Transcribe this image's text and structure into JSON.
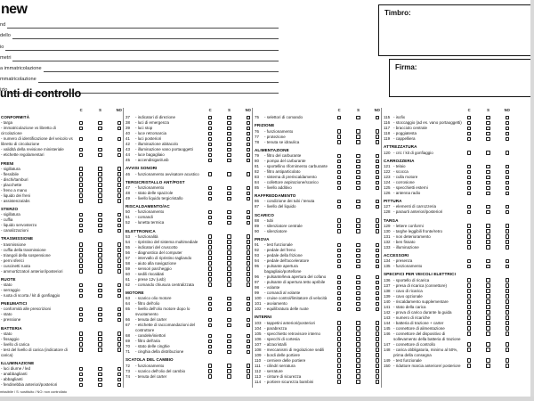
{
  "logo": "new",
  "form": {
    "fields": [
      {
        "label": "nd"
      },
      {
        "label": "dello"
      },
      {
        "label": "io"
      },
      {
        "label": "metri"
      },
      {
        "label": "a immatricolazione"
      },
      {
        "label": "mmatricolazione"
      },
      {
        "label": "izio"
      }
    ]
  },
  "stamp_box": {
    "label": "Timbro:"
  },
  "signature_box": {
    "label": "Firma:"
  },
  "checklist": {
    "heading": "unti di controllo",
    "mark_headers": [
      "C",
      "S",
      "NO"
    ],
    "legend": "missibile / S: sostituito / NO: non controllato",
    "columns": [
      {
        "sections": [
          {
            "title": "CONFORMITÀ",
            "items": [
              {
                "label": "- targa"
              },
              {
                "label": "- immatricolazione vs libretto di circolazione"
              },
              {
                "label": "- numero di identificazione del veicolo vs libretto di circolazione"
              },
              {
                "label": "- validità della revisione ministeriale"
              },
              {
                "label": "- etichette regolamentari"
              }
            ]
          },
          {
            "title": "FRENI",
            "items": [
              {
                "label": "- sigillatura"
              },
              {
                "label": "- flessibile"
              },
              {
                "label": "- dischi/tamburi"
              },
              {
                "label": "- placchette"
              },
              {
                "label": "- freno a mano"
              },
              {
                "label": "- liquido dei freni"
              },
              {
                "label": "- assistenza/abs"
              }
            ]
          },
          {
            "title": "STERZO",
            "items": [
              {
                "label": "- sigillatura"
              },
              {
                "label": "- cuffia"
              },
              {
                "label": "- liquido servosterzo"
              },
              {
                "label": "- canalizzazioni"
              }
            ]
          },
          {
            "title": "TRASMISSIONE",
            "items": [
              {
                "label": "- trasmissione"
              },
              {
                "label": "- cuffia della trasmissione"
              },
              {
                "label": "- triangoli della sospensione"
              },
              {
                "label": "- perni sferici"
              },
              {
                "label": "- cuscinetti ruota"
              },
              {
                "label": "- ammortizzatori anteriori/posteriori"
              }
            ]
          },
          {
            "title": "RUOTE",
            "items": [
              {
                "label": "- stato"
              },
              {
                "label": "- serraggio"
              },
              {
                "label": "- ruota di scorta / kit di gonfiaggio"
              }
            ]
          },
          {
            "title": "PNEUMATICI",
            "items": [
              {
                "label": "- conformità alle prescrizioni"
              },
              {
                "label": "- stato"
              },
              {
                "label": "- pressione"
              }
            ]
          },
          {
            "title": "BATTERIA",
            "items": [
              {
                "label": "- stato"
              },
              {
                "label": "- fissaggio"
              },
              {
                "label": "- livello di carica"
              },
              {
                "label": "- test del livello di carica (indicatore di carica)"
              }
            ]
          },
          {
            "title": "ILLUMINAZIONE",
            "items": [
              {
                "label": "- luci diurne / led"
              },
              {
                "label": "- anabbaglianti"
              },
              {
                "label": "- abbaglianti"
              },
              {
                "label": "- fendinebbia anteriori/posteriori"
              }
            ]
          }
        ]
      },
      {
        "sections": [
          {
            "items": [
              {
                "n": 37,
                "label": "- indicatori di direzione"
              },
              {
                "n": 38,
                "label": "- luci di emergenza"
              },
              {
                "n": 39,
                "label": "- luci stop"
              },
              {
                "n": 40,
                "label": "- luce retromarcia"
              },
              {
                "n": 41,
                "label": "- luci posteriori"
              },
              {
                "n": 42,
                "label": "- illuminazione abitacolo"
              },
              {
                "n": 43,
                "label": "- illuminazione vano portaoggetti"
              },
              {
                "n": 44,
                "label": "- luce bagagliaio"
              },
              {
                "n": 45,
                "label": "- accendisigari/usb"
              }
            ]
          },
          {
            "title": "AVVISI SONORI",
            "items": [
              {
                "n": 46,
                "label": "- funzionamento avvisatore acustico"
              }
            ]
          },
          {
            "title": "TERGICRISTALLO ANT/POST",
            "items": [
              {
                "n": 47,
                "label": "- funzionamento"
              },
              {
                "n": 48,
                "label": "- stato delle spazzole"
              },
              {
                "n": 49,
                "label": "- livello liquido tergicristallo"
              }
            ]
          },
          {
            "title": "RISCALDAMENTO/AC",
            "items": [
              {
                "n": 50,
                "label": "- funzionamento"
              },
              {
                "n": 51,
                "label": "- comandi"
              },
              {
                "n": 52,
                "label": "- lunetta termica"
              }
            ]
          },
          {
            "title": "ELETTRONICA",
            "items": [
              {
                "n": 53,
                "label": "- funzionalità"
              },
              {
                "n": 54,
                "label": "- ripristino del sistema multimediale"
              },
              {
                "n": 55,
                "label": "- indicatori del cruscotto"
              },
              {
                "n": 56,
                "label": "- diagnostica del computer"
              },
              {
                "n": 57,
                "label": "- intervallo di ripristino tagliando"
              },
              {
                "n": 58,
                "label": "- aiuto alla navigazione"
              },
              {
                "n": 59,
                "label": "- sensori parcheggio"
              },
              {
                "n": 60,
                "label": "- sedili riscaldati"
              },
              {
                "n": 61,
                "label": "- prese 12v (usb)"
              },
              {
                "n": 62,
                "label": "- comando chiusura centralizzata"
              }
            ]
          },
          {
            "title": "MOTORE",
            "items": [
              {
                "n": 63,
                "label": "- scarico olio motore"
              },
              {
                "n": 64,
                "label": "- filtro dell'olio"
              },
              {
                "n": 65,
                "label": "- livello dell'olio motore dopo lo svuotamento"
              },
              {
                "n": 66,
                "label": "- tenuta del carter"
              },
              {
                "n": 67,
                "label": "- etichette di raccomandazioni del costruttore"
              },
              {
                "n": 68,
                "label": "- candele/iniettori"
              },
              {
                "n": 69,
                "label": "- filtro dell'aria"
              },
              {
                "n": 70,
                "label": "- stato delle cinghie"
              },
              {
                "n": 71,
                "label": "- cinghia della distribuzione"
              }
            ]
          },
          {
            "title": "SCATOLA DEL CAMBIO",
            "items": [
              {
                "n": 72,
                "label": "- funzionamento"
              },
              {
                "n": 73,
                "label": "- scarico dell'olio del cambio"
              },
              {
                "n": 74,
                "label": "- tenuta del carter"
              }
            ]
          }
        ]
      },
      {
        "sections": [
          {
            "items": [
              {
                "n": 75,
                "label": "- selettori di comando"
              }
            ]
          },
          {
            "title": "FRIZIONE",
            "items": [
              {
                "n": 76,
                "label": "- funzionamento"
              },
              {
                "n": 77,
                "label": "- protezione"
              },
              {
                "n": 78,
                "label": "- tenuta se idraulica"
              }
            ]
          },
          {
            "title": "ALIMENTAZIONE",
            "items": [
              {
                "n": 79,
                "label": "- filtro del carburante"
              },
              {
                "n": 80,
                "label": "- pompa del carburante"
              },
              {
                "n": 81,
                "label": "- sportellino rifornimento carburante"
              },
              {
                "n": 82,
                "label": "- filtro antiparticolato"
              },
              {
                "n": 83,
                "label": "- sistema di preriscaldamento"
              },
              {
                "n": 84,
                "label": "- collettore aspirazione/scarico"
              },
              {
                "n": 85,
                "label": "- livello additivo"
              }
            ]
          },
          {
            "title": "RAFFREDDAMENTO",
            "items": [
              {
                "n": 86,
                "label": "- condizione dei tubi / tenuta"
              },
              {
                "n": 87,
                "label": "- livello del liquido"
              }
            ]
          },
          {
            "title": "SCARICO",
            "items": [
              {
                "n": 88,
                "label": "- tubi"
              },
              {
                "n": 89,
                "label": "- silenziatore centrale"
              },
              {
                "n": 90,
                "label": "- silenziatore"
              }
            ]
          },
          {
            "title": "PROVA",
            "items": [
              {
                "n": 91,
                "label": "- test funzionale"
              },
              {
                "n": 92,
                "label": "- pedale del freno"
              },
              {
                "n": 93,
                "label": "- pedale della frizione"
              },
              {
                "n": 94,
                "label": "- pedale dell'acceleratore"
              },
              {
                "n": 95,
                "label": "- pulsante apertura bagagliaio/portellone"
              },
              {
                "n": 96,
                "label": "- pulsante/leva apertura del cofano"
              },
              {
                "n": 97,
                "label": "- pulsante di apertura tetto apribile"
              },
              {
                "n": 98,
                "label": "- volante"
              },
              {
                "n": 99,
                "label": "- comandi al volante"
              },
              {
                "n": 100,
                "label": "- cruise control/limitatore di velocità"
              },
              {
                "n": 101,
                "label": "- avviamento"
              },
              {
                "n": 102,
                "label": "- equilibratura delle ruote"
              }
            ]
          },
          {
            "title": "INTERNI",
            "items": [
              {
                "n": 103,
                "label": "- tappetini anteriori/posteriori"
              },
              {
                "n": 104,
                "label": "- parabrezza"
              },
              {
                "n": 105,
                "label": "- specchietto retrovisore interno"
              },
              {
                "n": 106,
                "label": "- specchi di cortesia"
              },
              {
                "n": 107,
                "label": "- alzacristalli"
              },
              {
                "n": 108,
                "label": "- meccanismi di regolazione sedili"
              },
              {
                "n": 109,
                "label": "- bordi delle portiere"
              },
              {
                "n": 110,
                "label": "- cerniere delle portiere"
              },
              {
                "n": 111,
                "label": "- cilindri serratura"
              },
              {
                "n": 112,
                "label": "- serrature"
              },
              {
                "n": 113,
                "label": "- cinture di sicurezza"
              },
              {
                "n": 114,
                "label": "- portiere sicurezza bambini"
              }
            ]
          }
        ]
      },
      {
        "sections": [
          {
            "items": [
              {
                "n": 115,
                "label": "- isofix"
              },
              {
                "n": 116,
                "label": "- stoccaggio (ad es. vano portaoggetti)"
              },
              {
                "n": 117,
                "label": "- bracciolo centrale"
              },
              {
                "n": 118,
                "label": "- poggiatesta"
              },
              {
                "n": 119,
                "label": "- cappelliera"
              }
            ]
          },
          {
            "title": "ATTREZZATURA",
            "items": [
              {
                "n": 120,
                "label": "- cric / kit di gonfiaggio"
              }
            ]
          },
          {
            "title": "CARROZZERIA",
            "items": [
              {
                "n": 121,
                "label": "- telaio"
              },
              {
                "n": 122,
                "label": "- scocca"
              },
              {
                "n": 123,
                "label": "- culla motore"
              },
              {
                "n": 124,
                "label": "- corrosione"
              },
              {
                "n": 125,
                "label": "- specchietti esterni"
              },
              {
                "n": 126,
                "label": "- antenna radio"
              }
            ]
          },
          {
            "title": "PITTURA",
            "items": [
              {
                "n": 127,
                "label": "- elementi di carrozzeria"
              },
              {
                "n": 128,
                "label": "- paraurti anteriori/posteriori"
              }
            ]
          },
          {
            "title": "TARGA",
            "items": [
              {
                "n": 129,
                "label": "- lettere conformi"
              },
              {
                "n": 130,
                "label": "- targhe leggibili fronte/retro"
              },
              {
                "n": 131,
                "label": "- non deterioramento"
              },
              {
                "n": 132,
                "label": "- ben fissato"
              },
              {
                "n": 133,
                "label": "- illuminazione"
              }
            ]
          },
          {
            "title": "ACCESSORI",
            "items": [
              {
                "n": 134,
                "label": "- presenza"
              },
              {
                "n": 135,
                "label": "- funzionamento"
              }
            ]
          },
          {
            "title": "SPECIFICI PER VEICOLI ELETTRICI",
            "items": [
              {
                "n": 136,
                "label": "- sportello di ricarica"
              },
              {
                "n": 137,
                "label": "- presa di ricarica (connettore)"
              },
              {
                "n": 138,
                "label": "- cavo di ricarica"
              },
              {
                "n": 139,
                "label": "- cavo opzionale"
              },
              {
                "n": 140,
                "label": "- riscaldamento supplementare"
              },
              {
                "n": 141,
                "label": "- stato della carica"
              },
              {
                "n": 142,
                "label": "- prova di carico durante la guida"
              },
              {
                "n": 143,
                "label": "- numero di ricariche"
              },
              {
                "n": 144,
                "label": "- batteria di trazione + carter"
              },
              {
                "n": 145,
                "label": "- connettore di alimentazione"
              },
              {
                "n": 146,
                "label": "- connettore del dispositivo di sollevamento della batteria di trazione"
              },
              {
                "n": 147,
                "label": "- connettore di controllo"
              },
              {
                "n": 148,
                "label": "- carica obbligatoria, minimo al 50%, prima della consegna"
              },
              {
                "n": 149,
                "label": "- test funzionale"
              },
              {
                "n": 150,
                "label": "- riduttore marcia anteriore/ posteriore"
              }
            ]
          }
        ]
      }
    ]
  }
}
